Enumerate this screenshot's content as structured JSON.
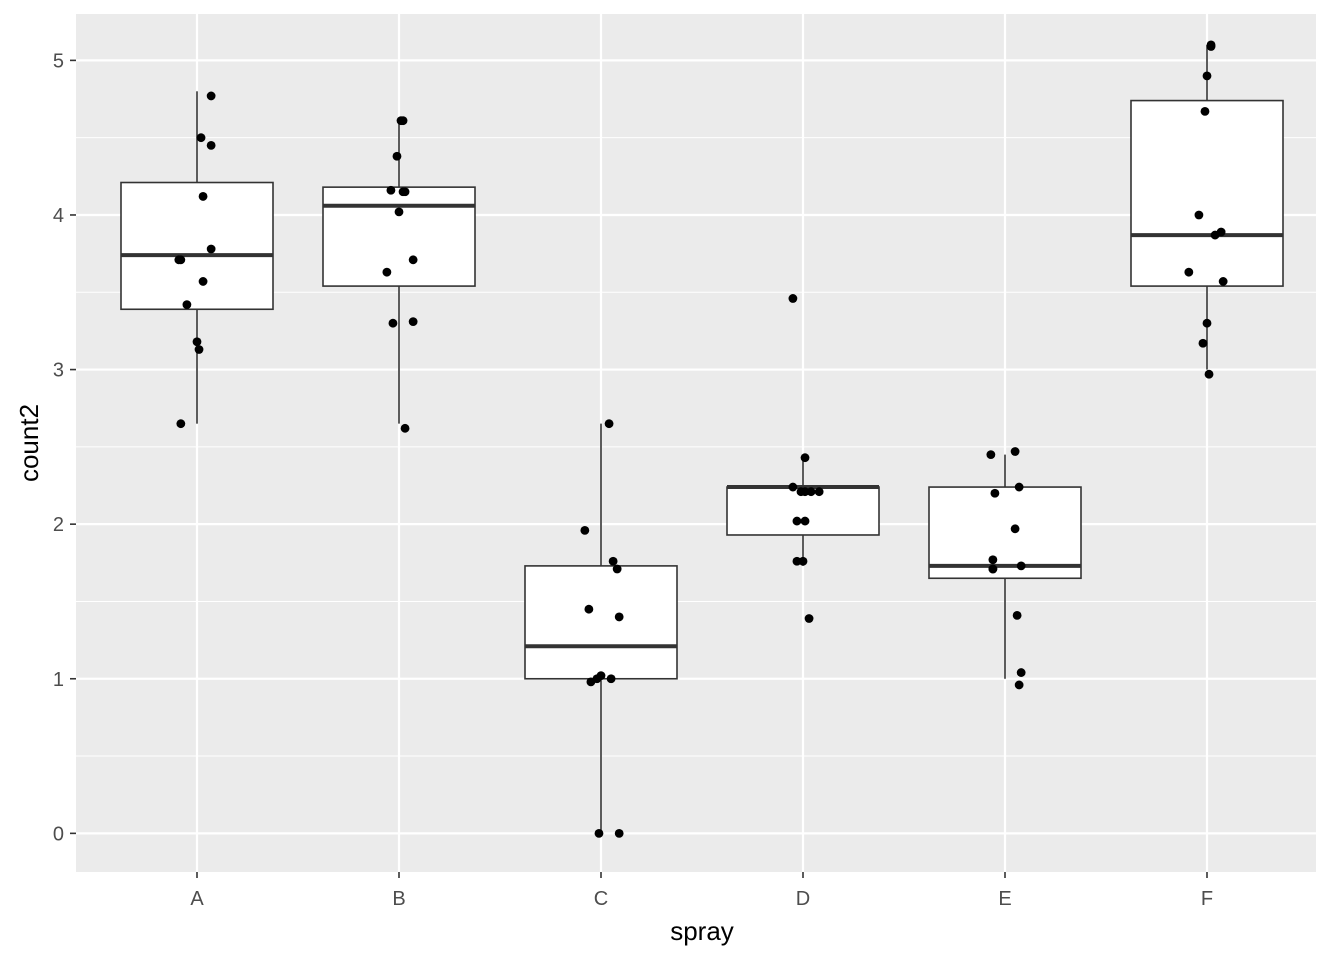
{
  "chart_data": {
    "type": "boxplot",
    "xlabel": "spray",
    "ylabel": "count2",
    "categories": [
      "A",
      "B",
      "C",
      "D",
      "E",
      "F"
    ],
    "ylim": [
      -0.25,
      5.3
    ],
    "yticks": [
      0,
      1,
      2,
      3,
      4,
      5
    ],
    "grid": true,
    "colors": {
      "panel": "#ebebeb",
      "grid": "#ffffff",
      "box_fill": "#ffffff",
      "box_line": "#333333",
      "point": "#000000",
      "tick_text": "#4d4d4d"
    },
    "boxes": [
      {
        "category": "A",
        "lower_whisker": 2.65,
        "q1": 3.39,
        "median": 3.74,
        "q3": 4.21,
        "upper_whisker": 4.8
      },
      {
        "category": "B",
        "lower_whisker": 2.65,
        "q1": 3.54,
        "median": 4.06,
        "q3": 4.18,
        "upper_whisker": 4.6
      },
      {
        "category": "C",
        "lower_whisker": 0.0,
        "q1": 1.0,
        "median": 1.21,
        "q3": 1.73,
        "upper_whisker": 2.65
      },
      {
        "category": "D",
        "lower_whisker": 1.73,
        "q1": 1.93,
        "median": 2.24,
        "q3": 2.24,
        "upper_whisker": 2.45
      },
      {
        "category": "E",
        "lower_whisker": 1.0,
        "q1": 1.65,
        "median": 1.73,
        "q3": 2.24,
        "upper_whisker": 2.45
      },
      {
        "category": "F",
        "lower_whisker": 3.0,
        "q1": 3.54,
        "median": 3.87,
        "q3": 4.74,
        "upper_whisker": 5.1
      }
    ],
    "points": [
      {
        "category": "A",
        "jitter": [
          -0.08,
          0.07,
          0.02,
          0.0,
          -0.05,
          0.01,
          0.03,
          -0.09,
          0.03,
          0.07,
          0.07,
          -0.08
        ],
        "values": [
          3.71,
          4.45,
          4.5,
          3.18,
          3.42,
          3.13,
          3.57,
          3.71,
          4.12,
          4.77,
          3.78,
          2.65
        ]
      },
      {
        "category": "B",
        "jitter": [
          -0.03,
          0.01,
          0.02,
          0.07,
          -0.06,
          -0.04,
          0.02,
          -0.01,
          0.03,
          0.03,
          0.07,
          0.0
        ],
        "values": [
          3.3,
          4.61,
          4.15,
          3.31,
          3.63,
          4.16,
          4.61,
          4.38,
          4.15,
          2.62,
          3.71,
          4.02
        ]
      },
      {
        "category": "C",
        "jitter": [
          -0.08,
          -0.06,
          -0.05,
          0.0,
          0.04,
          0.08,
          -0.01,
          0.05,
          0.09,
          0.09,
          -0.02,
          0.06
        ],
        "values": [
          1.96,
          1.45,
          0.98,
          1.02,
          2.65,
          1.71,
          0.0,
          1.0,
          0.0,
          1.4,
          1.0,
          1.76
        ]
      },
      {
        "category": "D",
        "jitter": [
          -0.05,
          -0.01,
          0.01,
          -0.03,
          0.08,
          0.01,
          -0.03,
          -0.05,
          0.0,
          0.03,
          0.01,
          0.04
        ],
        "values": [
          3.46,
          2.21,
          2.43,
          1.76,
          2.21,
          2.21,
          2.02,
          2.24,
          1.76,
          1.39,
          2.02,
          2.21
        ]
      },
      {
        "category": "E",
        "jitter": [
          -0.07,
          -0.05,
          0.07,
          0.06,
          -0.06,
          0.05,
          0.08,
          -0.06,
          0.07,
          0.08,
          0.05,
          -0.06
        ],
        "values": [
          2.45,
          2.2,
          2.24,
          1.41,
          1.77,
          2.47,
          1.73,
          1.71,
          0.96,
          1.04,
          1.97,
          1.71
        ]
      },
      {
        "category": "F",
        "jitter": [
          -0.04,
          0.0,
          0.02,
          0.0,
          0.01,
          -0.01,
          0.07,
          -0.09,
          -0.02,
          0.04,
          0.08,
          0.02
        ],
        "values": [
          4.0,
          3.3,
          5.1,
          4.9,
          2.97,
          4.67,
          3.89,
          3.63,
          3.17,
          3.87,
          3.57,
          5.09
        ]
      }
    ]
  }
}
